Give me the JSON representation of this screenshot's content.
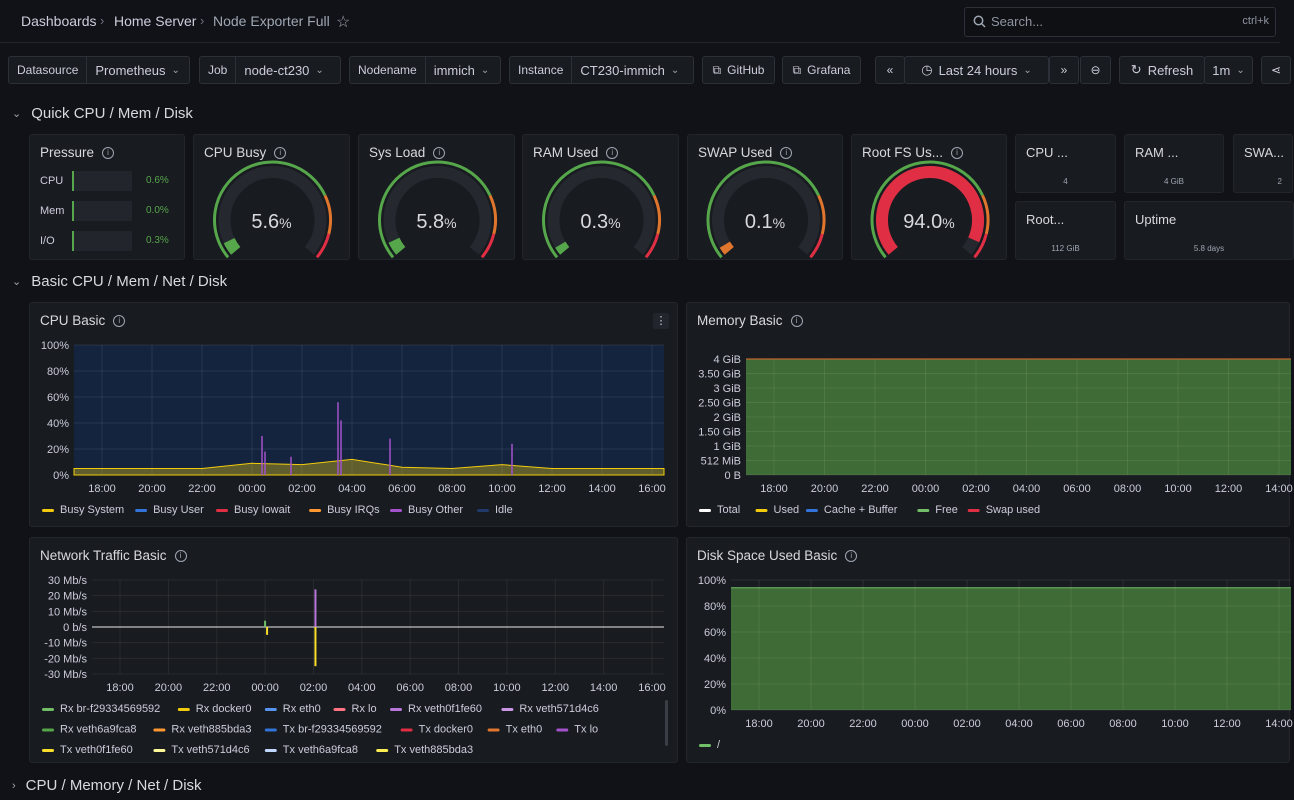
{
  "breadcrumb": [
    "Dashboards",
    "Home Server",
    "Node Exporter Full"
  ],
  "search": {
    "placeholder": "Search...",
    "shortcut": "ctrl+k"
  },
  "vars": [
    {
      "label": "Datasource",
      "value": "Prometheus"
    },
    {
      "label": "Job",
      "value": "node-ct230"
    },
    {
      "label": "Nodename",
      "value": "immich"
    },
    {
      "label": "Instance",
      "value": "CT230-immich"
    }
  ],
  "links": {
    "github": "GitHub",
    "grafana": "Grafana"
  },
  "time": {
    "range": "Last 24 hours",
    "refresh": "Refresh",
    "interval": "1m"
  },
  "rows": {
    "quick": "Quick CPU / Mem / Disk",
    "basic": "Basic CPU / Mem / Net / Disk",
    "collapsed": "CPU / Memory / Net / Disk"
  },
  "pressure": {
    "title": "Pressure",
    "items": [
      {
        "name": "CPU",
        "value": "0.6%",
        "fraction": 0.006
      },
      {
        "name": "Mem",
        "value": "0.0%",
        "fraction": 0.0
      },
      {
        "name": "I/O",
        "value": "0.3%",
        "fraction": 0.003
      }
    ]
  },
  "gauges": [
    {
      "title": "CPU Busy",
      "value": "5.6",
      "unit": "%",
      "fraction": 0.056,
      "color": "#56a64b"
    },
    {
      "title": "Sys Load",
      "value": "5.8",
      "unit": "%",
      "fraction": 0.058,
      "color": "#56a64b"
    },
    {
      "title": "RAM Used",
      "value": "0.3",
      "unit": "%",
      "fraction": 0.003,
      "color": "#56a64b"
    },
    {
      "title": "SWAP Used",
      "value": "0.1",
      "unit": "%",
      "fraction": 0.001,
      "color": "#e0752d"
    },
    {
      "title": "Root FS Us...",
      "value": "94.0",
      "unit": "%",
      "fraction": 0.94,
      "color": "#e02f44"
    }
  ],
  "stats": [
    {
      "title": "CPU ...",
      "value": "4"
    },
    {
      "title": "RAM ...",
      "value": "4 GiB"
    },
    {
      "title": "SWA...",
      "value": "2"
    },
    {
      "title": "Root...",
      "value": "112 GiB"
    },
    {
      "title": "Uptime",
      "value": "5.8 days"
    }
  ],
  "cpu_basic": {
    "title": "CPU Basic",
    "legend": [
      {
        "name": "Busy System",
        "color": "#f2cc0c"
      },
      {
        "name": "Busy User",
        "color": "#3274d9"
      },
      {
        "name": "Busy Iowait",
        "color": "#e02f44"
      },
      {
        "name": "Busy IRQs",
        "color": "#ff9830"
      },
      {
        "name": "Busy Other",
        "color": "#a352cc"
      },
      {
        "name": "Idle",
        "color": "#1f3a6b"
      }
    ]
  },
  "memory_basic": {
    "title": "Memory Basic",
    "legend": [
      {
        "name": "Total",
        "color": "#ffffff"
      },
      {
        "name": "Used",
        "color": "#f2cc0c"
      },
      {
        "name": "Cache + Buffer",
        "color": "#3274d9"
      },
      {
        "name": "Free",
        "color": "#73bf69"
      },
      {
        "name": "Swap used",
        "color": "#e02f44"
      }
    ]
  },
  "network_basic": {
    "title": "Network Traffic Basic",
    "legend": [
      {
        "name": "Rx br-f29334569592",
        "color": "#73bf69"
      },
      {
        "name": "Rx docker0",
        "color": "#f2cc0c"
      },
      {
        "name": "Rx eth0",
        "color": "#5794f2"
      },
      {
        "name": "Rx lo",
        "color": "#ff7383"
      },
      {
        "name": "Rx veth0f1fe60",
        "color": "#b877d9"
      },
      {
        "name": "Rx veth571d4c6",
        "color": "#ca95e5"
      },
      {
        "name": "Rx veth6a9fca8",
        "color": "#56a64b"
      },
      {
        "name": "Rx veth885bda3",
        "color": "#ff9830"
      },
      {
        "name": "Tx br-f29334569592",
        "color": "#3274d9"
      },
      {
        "name": "Tx docker0",
        "color": "#e02f44"
      },
      {
        "name": "Tx eth0",
        "color": "#e0752d"
      },
      {
        "name": "Tx lo",
        "color": "#a352cc"
      },
      {
        "name": "Tx veth0f1fe60",
        "color": "#fade2a"
      },
      {
        "name": "Tx veth571d4c6",
        "color": "#fff899"
      },
      {
        "name": "Tx veth6a9fca8",
        "color": "#c0d8ff"
      },
      {
        "name": "Tx veth885bda3",
        "color": "#ffee52"
      }
    ]
  },
  "disk_basic": {
    "title": "Disk Space Used Basic",
    "legend": [
      {
        "name": "/",
        "color": "#73bf69"
      }
    ]
  },
  "chart_data": [
    {
      "type": "area",
      "title": "CPU Basic",
      "x": [
        "18:00",
        "20:00",
        "22:00",
        "00:00",
        "02:00",
        "04:00",
        "06:00",
        "08:00",
        "10:00",
        "12:00",
        "14:00",
        "16:00"
      ],
      "yticks": [
        "0%",
        "20%",
        "40%",
        "60%",
        "80%",
        "100%"
      ],
      "ylim": [
        0,
        100
      ],
      "series": [
        {
          "name": "Busy System",
          "values": [
            2,
            2,
            2,
            2,
            3,
            2,
            2,
            2,
            2,
            2,
            2,
            2
          ]
        },
        {
          "name": "Busy User",
          "values": [
            2,
            2,
            2,
            3,
            3,
            2,
            2,
            2,
            2,
            2,
            2,
            2
          ]
        },
        {
          "name": "Busy Other",
          "values": [
            1,
            1,
            1,
            4,
            2,
            8,
            2,
            1,
            4,
            1,
            1,
            1
          ]
        },
        {
          "name": "Idle",
          "values": [
            95,
            95,
            95,
            91,
            92,
            88,
            94,
            95,
            92,
            95,
            95,
            95
          ]
        }
      ],
      "legend_position": "bottom"
    },
    {
      "type": "area",
      "title": "Memory Basic",
      "x": [
        "18:00",
        "20:00",
        "22:00",
        "00:00",
        "02:00",
        "04:00",
        "06:00",
        "08:00",
        "10:00",
        "12:00",
        "14:00"
      ],
      "yticks": [
        "0 B",
        "512 MiB",
        "1 GiB",
        "1.50 GiB",
        "2 GiB",
        "2.50 GiB",
        "3 GiB",
        "3.50 GiB",
        "4 GiB"
      ],
      "ylim": [
        0,
        4
      ],
      "series": [
        {
          "name": "Total",
          "values": [
            4,
            4,
            4,
            4,
            4,
            4,
            4,
            4,
            4,
            4,
            4
          ]
        },
        {
          "name": "Free",
          "values": [
            3.98,
            3.98,
            3.98,
            3.98,
            3.98,
            3.98,
            3.98,
            3.98,
            3.98,
            3.98,
            3.98
          ]
        }
      ],
      "legend_position": "bottom"
    },
    {
      "type": "line",
      "title": "Network Traffic Basic",
      "x": [
        "18:00",
        "20:00",
        "22:00",
        "00:00",
        "02:00",
        "04:00",
        "06:00",
        "08:00",
        "10:00",
        "12:00",
        "14:00",
        "16:00"
      ],
      "yticks": [
        "-30 Mb/s",
        "-20 Mb/s",
        "-10 Mb/s",
        "0 b/s",
        "10 Mb/s",
        "20 Mb/s",
        "30 Mb/s"
      ],
      "ylim": [
        -30,
        30
      ],
      "series": [
        {
          "name": "Rx br-f29334569592",
          "values": [
            0,
            0,
            0,
            4,
            0,
            0,
            0,
            0,
            0,
            0,
            0,
            0
          ]
        },
        {
          "name": "Rx veth0f1fe60",
          "values": [
            0,
            0,
            0,
            0,
            24,
            0,
            0,
            0,
            0,
            0,
            0,
            0
          ]
        },
        {
          "name": "Tx veth0f1fe60",
          "values": [
            0,
            0,
            0,
            -5,
            -25,
            0,
            0,
            0,
            0,
            0,
            0,
            0
          ]
        }
      ],
      "legend_position": "bottom"
    },
    {
      "type": "area",
      "title": "Disk Space Used Basic",
      "x": [
        "18:00",
        "20:00",
        "22:00",
        "00:00",
        "02:00",
        "04:00",
        "06:00",
        "08:00",
        "10:00",
        "12:00",
        "14:00"
      ],
      "yticks": [
        "0%",
        "20%",
        "40%",
        "60%",
        "80%",
        "100%"
      ],
      "ylim": [
        0,
        100
      ],
      "series": [
        {
          "name": "/",
          "values": [
            94,
            94,
            94,
            94,
            94,
            94,
            94,
            94,
            94,
            94,
            94
          ]
        }
      ],
      "legend_position": "bottom"
    }
  ]
}
